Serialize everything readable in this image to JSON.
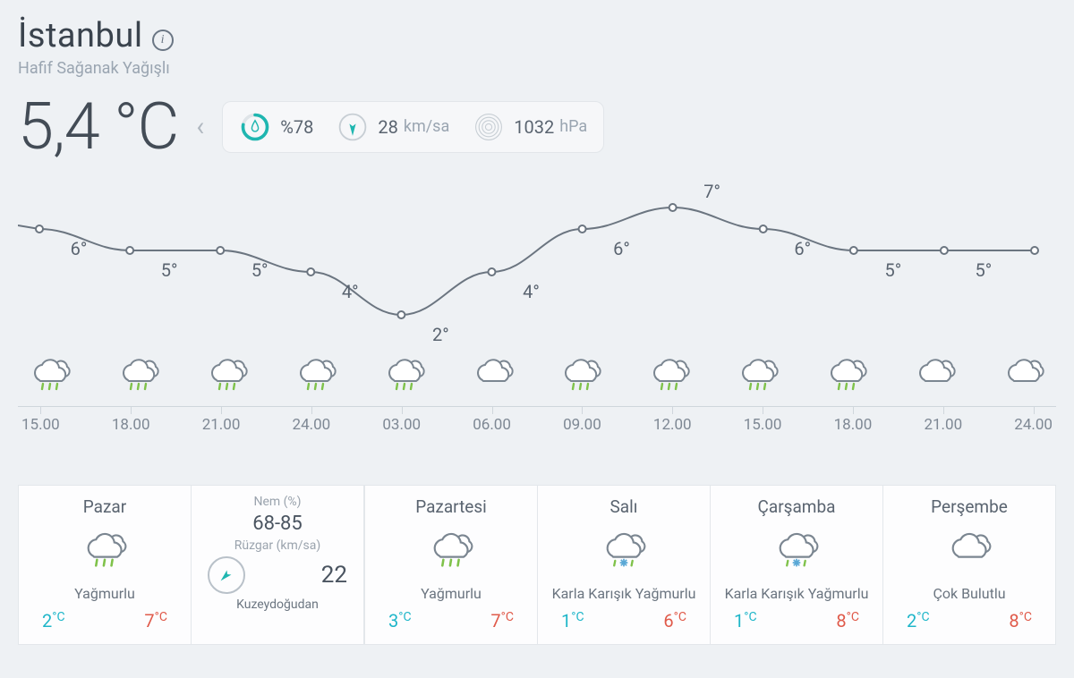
{
  "location": {
    "city": "İstanbul",
    "condition": "Hafif Sağanak Yağışlı"
  },
  "current": {
    "temp_display": "5,4 °C",
    "humidity_label": "%78",
    "humidity_pct": 78,
    "wind_value": "28",
    "wind_unit": "km/sa",
    "pressure_value": "1032",
    "pressure_unit": "hPa"
  },
  "colors": {
    "bg": "#eef1f4",
    "text": "#4a5560",
    "muted": "#9aa5b1",
    "accent_teal": "#1fb6b0",
    "line": "#6b7580",
    "low": "#1fb6c9",
    "high": "#e05a4a",
    "card_bg": "#fdfdfe",
    "border": "#e3e7eb",
    "pill_bg": "#f6f7f9",
    "axis": "#cfd6dc",
    "cloud_stroke": "#7b8691",
    "rain_drop": "#7fc24a",
    "snow": "#5aa8d6"
  },
  "chart": {
    "type": "line",
    "ylim": [
      2,
      7
    ],
    "line_color": "#6b7580",
    "line_width": 2,
    "point_fill": "#ffffff",
    "point_stroke": "#6b7580",
    "point_radius": 4,
    "label_fontsize": 20,
    "x_ticks": [
      "15.00",
      "18.00",
      "21.00",
      "24.00",
      "03.00",
      "06.00",
      "09.00",
      "12.00",
      "15.00",
      "18.00",
      "21.00",
      "24.00"
    ],
    "points": [
      {
        "t": 6,
        "label": "6°",
        "icon": "rain"
      },
      {
        "t": 5,
        "label": "5°",
        "icon": "rain"
      },
      {
        "t": 5,
        "label": "5°",
        "icon": "rain"
      },
      {
        "t": 4,
        "label": "4°",
        "icon": "rain"
      },
      {
        "t": 2,
        "label": "2°",
        "icon": "rain"
      },
      {
        "t": 4,
        "label": "4°",
        "icon": "cloud"
      },
      {
        "t": 6,
        "label": "6°",
        "icon": "rain"
      },
      {
        "t": 7,
        "label": "7°",
        "icon": "rain"
      },
      {
        "t": 6,
        "label": "6°",
        "icon": "rain"
      },
      {
        "t": 5,
        "label": "5°",
        "icon": "rain"
      },
      {
        "t": 5,
        "label": "5°",
        "icon": "cloud"
      },
      {
        "t": 5,
        "label": "",
        "icon": "cloud"
      }
    ]
  },
  "today_detail": {
    "humidity_label": "Nem (%)",
    "humidity_range": "68-85",
    "wind_label": "Rüzgar (km/sa)",
    "wind_value": "22",
    "wind_dir": "Kuzeydoğudan",
    "wind_arrow_deg": 225
  },
  "forecast": [
    {
      "day": "Pazar",
      "icon": "rain",
      "cond": "Yağmurlu",
      "lo": "2",
      "hi": "7"
    },
    {
      "day": "Pazartesi",
      "icon": "rain",
      "cond": "Yağmurlu",
      "lo": "3",
      "hi": "7"
    },
    {
      "day": "Salı",
      "icon": "sleet",
      "cond": "Karla Karışık Yağmurlu",
      "lo": "1",
      "hi": "6"
    },
    {
      "day": "Çarşamba",
      "icon": "sleet",
      "cond": "Karla Karışık Yağmurlu",
      "lo": "1",
      "hi": "8"
    },
    {
      "day": "Perşembe",
      "icon": "cloud",
      "cond": "Çok Bulutlu",
      "lo": "2",
      "hi": "8"
    }
  ]
}
